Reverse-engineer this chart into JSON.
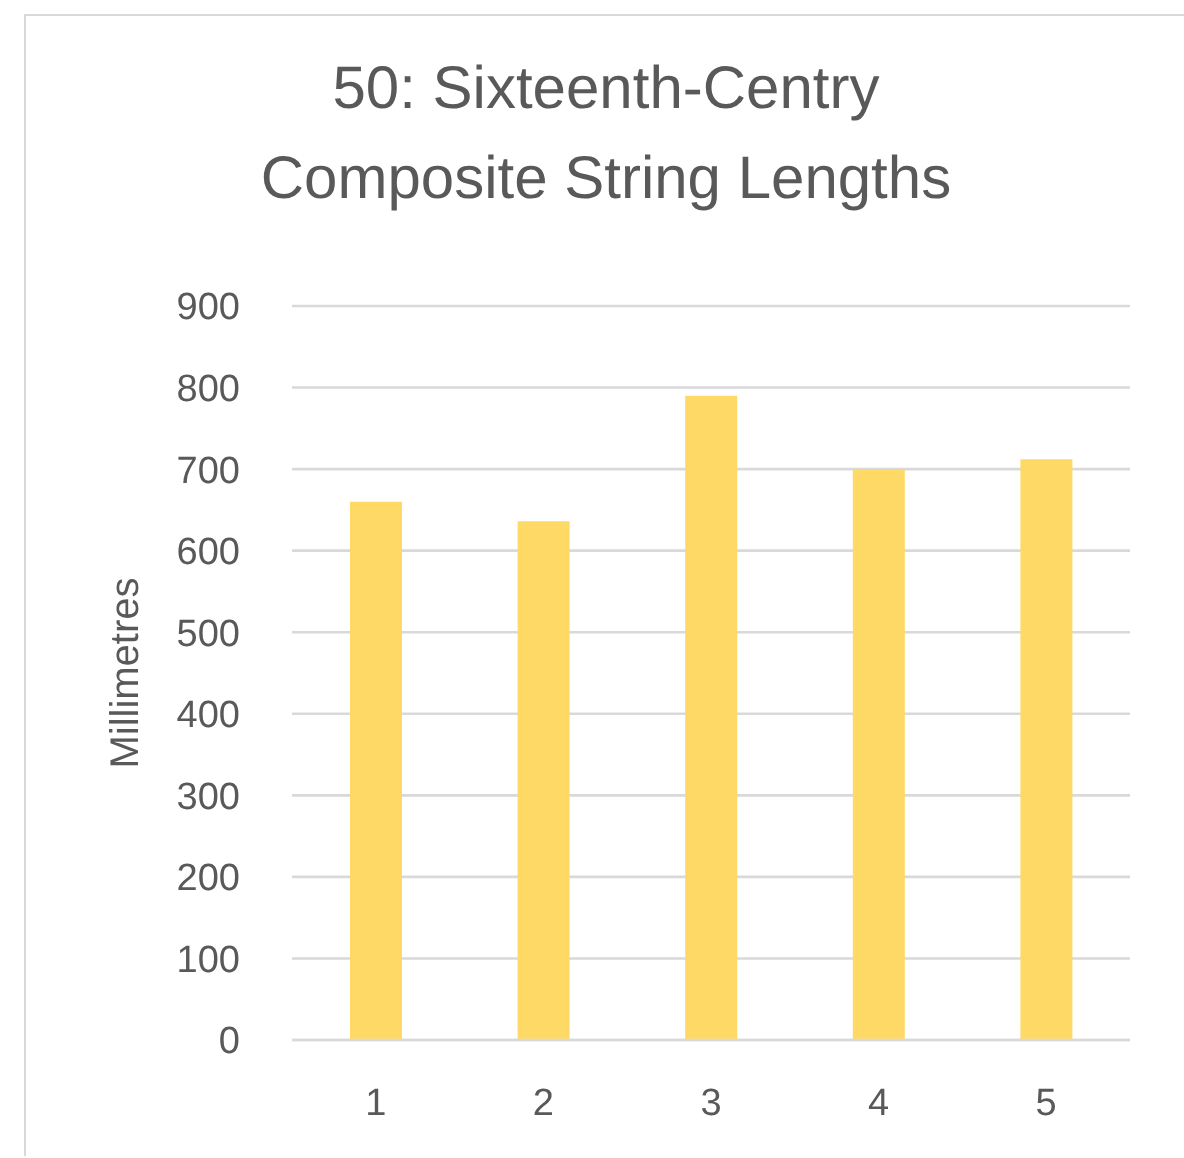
{
  "chart_data": {
    "type": "bar",
    "title": "50: Sixteenth-Centry Composite String Lengths",
    "ylabel": "Millimetres",
    "categories": [
      "1",
      "2",
      "3",
      "4",
      "5"
    ],
    "values": [
      660,
      636,
      790,
      700,
      712
    ],
    "color": "#ffd966",
    "ylim": [
      0,
      900
    ],
    "yticks": [
      0,
      100,
      200,
      300,
      400,
      500,
      600,
      700,
      800,
      900
    ],
    "grid": "y"
  }
}
